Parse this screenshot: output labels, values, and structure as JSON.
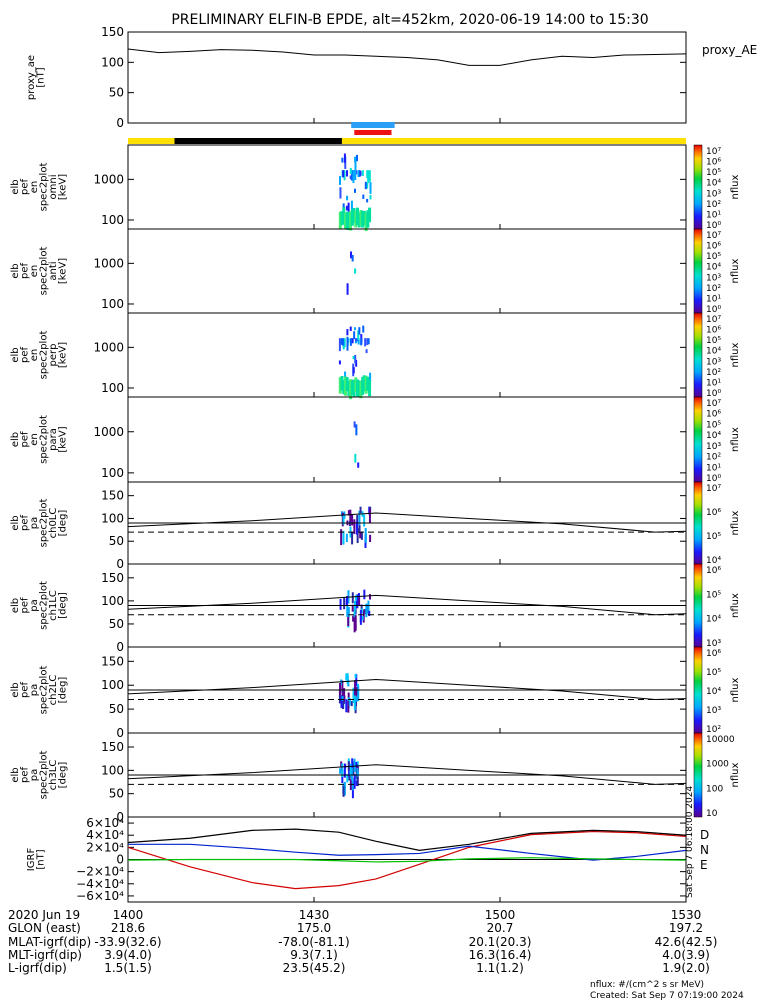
{
  "title": "PRELIMINARY ELFIN-B EPDE, alt=452km, 2020-06-19 14:00 to 15:30",
  "colors": {
    "yellow": "#ffe000",
    "black": "#000000",
    "blue_bar": "#2a9df4",
    "red_bar": "#ee1111",
    "geo_x": "#d40000",
    "geo_y": "#0022cc",
    "geo_z": "#00c000"
  },
  "chart_data": [
    {
      "type": "line",
      "name": "proxy_ae",
      "ylabel_lines": [
        "proxy_ae",
        "[nT]"
      ],
      "ylim": [
        0,
        150
      ],
      "yticks": [
        "150",
        "100",
        "50",
        "0"
      ],
      "legend": "proxy_AE",
      "x_min": [
        0,
        5,
        10,
        15,
        20,
        25,
        30,
        35,
        40,
        45,
        50,
        55,
        60,
        65,
        70,
        75,
        80,
        85,
        90
      ],
      "values": [
        122,
        116,
        118,
        121,
        120,
        117,
        112,
        112,
        110,
        108,
        104,
        95,
        95,
        104,
        110,
        108,
        112,
        113,
        114
      ]
    },
    {
      "type": "heatmap",
      "name": "spec-omni",
      "ylabel_lines": [
        "elb",
        "pef",
        "en",
        "spec2plot",
        "omni",
        "[keV]"
      ],
      "yscale": "log",
      "ylim": [
        60,
        7000
      ],
      "yticks": [
        "1000",
        "100"
      ],
      "colorbar_label": "nflux",
      "colorbar_ticks": [
        "10⁷",
        "10⁶",
        "10⁵",
        "10⁴",
        "10³",
        "10²",
        "10¹",
        "10⁰"
      ],
      "time_range_min": [
        34,
        39
      ]
    },
    {
      "type": "heatmap",
      "name": "spec-anti",
      "ylabel_lines": [
        "elb",
        "pef",
        "en",
        "spec2plot",
        "anti",
        "[keV]"
      ],
      "yscale": "log",
      "ylim": [
        60,
        7000
      ],
      "yticks": [
        "1000",
        "100"
      ],
      "colorbar_label": "nflux",
      "colorbar_ticks": [
        "10⁷",
        "10⁶",
        "10⁵",
        "10⁴",
        "10³",
        "10²",
        "10¹",
        "10⁰"
      ],
      "time_range_min": [
        35,
        37
      ]
    },
    {
      "type": "heatmap",
      "name": "spec-perp",
      "ylabel_lines": [
        "elb",
        "pef",
        "en",
        "spec2plot",
        "perp",
        "[keV]"
      ],
      "yscale": "log",
      "ylim": [
        60,
        7000
      ],
      "yticks": [
        "1000",
        "100"
      ],
      "colorbar_label": "nflux",
      "colorbar_ticks": [
        "10⁷",
        "10⁶",
        "10⁵",
        "10⁴",
        "10³",
        "10²",
        "10¹",
        "10⁰"
      ],
      "time_range_min": [
        34,
        39
      ]
    },
    {
      "type": "heatmap",
      "name": "spec-para",
      "ylabel_lines": [
        "elb",
        "pef",
        "en",
        "spec2plot",
        "para",
        "[keV]"
      ],
      "yscale": "log",
      "ylim": [
        60,
        7000
      ],
      "yticks": [
        "1000",
        "100"
      ],
      "colorbar_label": "nflux",
      "colorbar_ticks": [
        "10⁷",
        "10⁶",
        "10⁵",
        "10⁴",
        "10³",
        "10²",
        "10¹",
        "10⁰"
      ],
      "time_range_min": [
        36,
        37
      ]
    },
    {
      "type": "heatmap",
      "name": "pa-ch0",
      "ylabel_lines": [
        "elb",
        "pef",
        "pa",
        "spec2plot",
        "ch0LC",
        "[deg]"
      ],
      "ylim": [
        0,
        180
      ],
      "yticks": [
        "150",
        "100",
        "50",
        "0"
      ],
      "colorbar_label": "nflux",
      "colorbar_ticks": [
        "10⁷",
        "10⁶",
        "10⁵",
        "10⁴"
      ],
      "time_range_min": [
        34,
        39
      ]
    },
    {
      "type": "heatmap",
      "name": "pa-ch1",
      "ylabel_lines": [
        "elb",
        "pef",
        "pa",
        "spec2plot",
        "ch1LC",
        "[deg]"
      ],
      "ylim": [
        0,
        180
      ],
      "yticks": [
        "150",
        "100",
        "50",
        "0"
      ],
      "colorbar_label": "nflux",
      "colorbar_ticks": [
        "10⁶",
        "10⁵",
        "10⁴",
        "10³"
      ],
      "time_range_min": [
        34,
        39
      ]
    },
    {
      "type": "heatmap",
      "name": "pa-ch2",
      "ylabel_lines": [
        "elb",
        "pef",
        "pa",
        "spec2plot",
        "ch2LC",
        "[deg]"
      ],
      "ylim": [
        0,
        180
      ],
      "yticks": [
        "150",
        "100",
        "50",
        "0"
      ],
      "colorbar_label": "nflux",
      "colorbar_ticks": [
        "10⁶",
        "10⁵",
        "10⁴",
        "10³",
        "10²"
      ],
      "time_range_min": [
        34,
        37
      ]
    },
    {
      "type": "heatmap",
      "name": "pa-ch3",
      "ylabel_lines": [
        "elb",
        "pef",
        "pa",
        "spec2plot",
        "ch3LC",
        "[deg]"
      ],
      "ylim": [
        0,
        180
      ],
      "yticks": [
        "150",
        "100",
        "50",
        "0"
      ],
      "colorbar_label": "nflux",
      "colorbar_ticks": [
        "10000",
        "1000",
        "100",
        "10"
      ],
      "time_range_min": [
        34,
        37
      ]
    },
    {
      "type": "line",
      "name": "igrf",
      "ylabel_lines": [
        "IGRF",
        "[nT]"
      ],
      "ylim": [
        -70000,
        70000
      ],
      "yticks": [
        "6×10⁴",
        "4×10⁴",
        "2×10⁴",
        "0",
        "−2×10⁴",
        "−4×10⁴",
        "−6×10⁴"
      ],
      "legend": [
        "D",
        "N",
        "E"
      ],
      "x_min": [
        0,
        10,
        20,
        27,
        34,
        40,
        47,
        55,
        65,
        75,
        82,
        90
      ],
      "series": [
        {
          "name": "D",
          "values": [
            20000,
            -12000,
            -38000,
            -48000,
            -43000,
            -32000,
            -8000,
            20000,
            41000,
            46000,
            44000,
            38000
          ]
        },
        {
          "name": "N",
          "values": [
            25000,
            25000,
            18000,
            12000,
            7000,
            8000,
            10000,
            22000,
            10000,
            -1000,
            5000,
            15000
          ]
        },
        {
          "name": "E",
          "values": [
            -1000,
            0,
            0,
            0,
            -2000,
            -4000,
            -3000,
            1000,
            3000,
            1000,
            0,
            -1000
          ]
        },
        {
          "name": "total",
          "values": [
            28000,
            35000,
            48000,
            50000,
            45000,
            30000,
            15000,
            25000,
            43000,
            48000,
            46000,
            40000
          ]
        }
      ],
      "side_note": "Sat Sep  7 06:18:00 2024"
    }
  ],
  "xaxis": {
    "tick_labels": [
      "1400",
      "1430",
      "1500",
      "1530"
    ],
    "rows": [
      {
        "label": "2020 Jun 19",
        "values": [
          "",
          "",
          "",
          ""
        ]
      },
      {
        "label": "GLON (east)",
        "values": [
          "218.6",
          "175.0",
          "20.7",
          "197.2"
        ]
      },
      {
        "label": "MLAT-igrf(dip)",
        "values": [
          "-33.9(32.6)",
          "-78.0(-81.1)",
          "20.1(20.3)",
          "42.6(42.5)"
        ]
      },
      {
        "label": "MLT-igrf(dip)",
        "values": [
          "3.9(4.0)",
          "9.3(7.1)",
          "16.3(16.4)",
          "4.0(3.9)"
        ]
      },
      {
        "label": "L-igrf(dip)",
        "values": [
          "1.5(1.5)",
          "23.5(45.2)",
          "1.1(1.2)",
          "1.9(2.0)"
        ]
      }
    ]
  },
  "footer": {
    "units": "nflux: #/(cm^2 s sr MeV)",
    "created": "Created: Sat Sep  7 07:19:00 2024"
  }
}
